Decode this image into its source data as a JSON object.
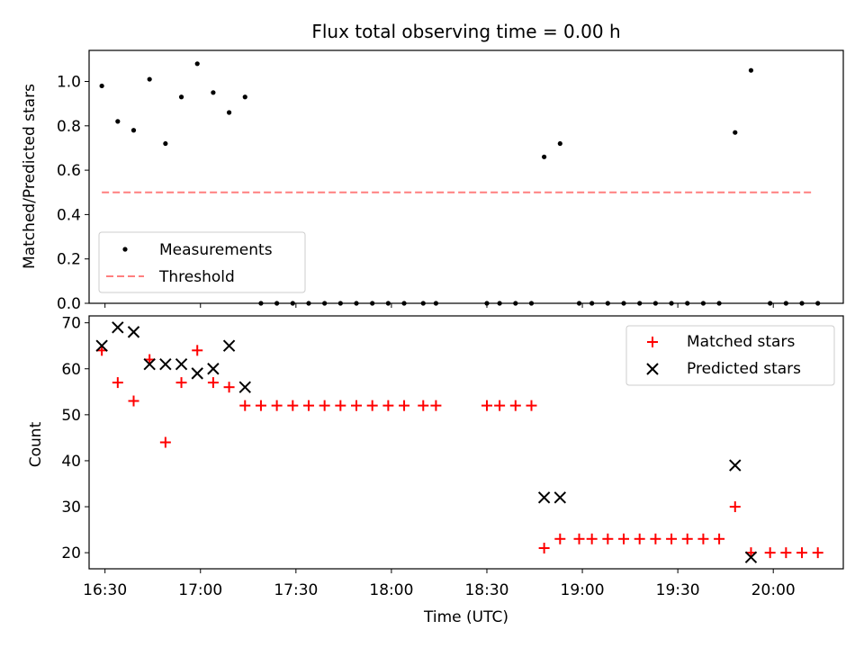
{
  "chart_data": [
    {
      "type": "scatter",
      "title": "Flux total observing time = 0.00 h",
      "xlabel": "",
      "ylabel": "Matched/Predicted stars",
      "x_axis": "time",
      "xlim": [
        "16:25",
        "20:22"
      ],
      "ylim": [
        0,
        1.14
      ],
      "yticks": [
        0.0,
        0.2,
        0.4,
        0.6,
        0.8,
        1.0
      ],
      "ytick_labels": [
        "0.0",
        "0.2",
        "0.4",
        "0.6",
        "0.8",
        "1.0"
      ],
      "legend_position": "lower-left",
      "series": [
        {
          "name": "Measurements",
          "kind": "point",
          "color": "#000000",
          "x": [
            "16:29",
            "16:34",
            "16:39",
            "16:44",
            "16:49",
            "16:54",
            "16:59",
            "17:04",
            "17:09",
            "17:14",
            "17:19",
            "17:24",
            "17:29",
            "17:34",
            "17:39",
            "17:44",
            "17:49",
            "17:54",
            "17:59",
            "18:04",
            "18:10",
            "18:14",
            "18:30",
            "18:34",
            "18:39",
            "18:44",
            "18:48",
            "18:53",
            "18:59",
            "19:03",
            "19:08",
            "19:13",
            "19:18",
            "19:23",
            "19:28",
            "19:33",
            "19:38",
            "19:43",
            "19:48",
            "19:53",
            "19:59",
            "20:04",
            "20:09",
            "20:14"
          ],
          "y": [
            0.98,
            0.82,
            0.78,
            1.01,
            0.72,
            0.93,
            1.08,
            0.95,
            0.86,
            0.93,
            0,
            0,
            0,
            0,
            0,
            0,
            0,
            0,
            0,
            0,
            0,
            0,
            0,
            0,
            0,
            0,
            0.66,
            0.72,
            0,
            0,
            0,
            0,
            0,
            0,
            0,
            0,
            0,
            0,
            0.77,
            1.05,
            0,
            0,
            0,
            0
          ]
        },
        {
          "name": "Threshold",
          "kind": "dashed-line",
          "color": "#ff7f7f",
          "x": [
            "16:29",
            "20:12"
          ],
          "y": [
            0.5,
            0.5
          ]
        }
      ]
    },
    {
      "type": "scatter",
      "title": "",
      "xlabel": "Time (UTC)",
      "ylabel": "Count",
      "x_axis": "time",
      "xlim": [
        "16:25",
        "20:22"
      ],
      "ylim": [
        16.5,
        71.5
      ],
      "xticks": [
        "16:30",
        "17:00",
        "17:30",
        "18:00",
        "18:30",
        "19:00",
        "19:30",
        "20:00"
      ],
      "yticks": [
        20,
        30,
        40,
        50,
        60,
        70
      ],
      "ytick_labels": [
        "20",
        "30",
        "40",
        "50",
        "60",
        "70"
      ],
      "legend_position": "upper-right",
      "series": [
        {
          "name": "Matched stars",
          "marker": "plus",
          "color": "#ff0000",
          "x": [
            "16:29",
            "16:34",
            "16:39",
            "16:44",
            "16:49",
            "16:54",
            "16:59",
            "17:04",
            "17:09",
            "17:14",
            "17:19",
            "17:24",
            "17:29",
            "17:34",
            "17:39",
            "17:44",
            "17:49",
            "17:54",
            "17:59",
            "18:04",
            "18:10",
            "18:14",
            "18:30",
            "18:34",
            "18:39",
            "18:44",
            "18:48",
            "18:53",
            "18:59",
            "19:03",
            "19:08",
            "19:13",
            "19:18",
            "19:23",
            "19:28",
            "19:33",
            "19:38",
            "19:43",
            "19:48",
            "19:53",
            "19:59",
            "20:04",
            "20:09",
            "20:14"
          ],
          "y": [
            64,
            57,
            53,
            62,
            44,
            57,
            64,
            57,
            56,
            52,
            52,
            52,
            52,
            52,
            52,
            52,
            52,
            52,
            52,
            52,
            52,
            52,
            52,
            52,
            52,
            52,
            21,
            23,
            23,
            23,
            23,
            23,
            23,
            23,
            23,
            23,
            23,
            23,
            30,
            20,
            20,
            20,
            20,
            20
          ]
        },
        {
          "name": "Predicted stars",
          "marker": "x",
          "color": "#000000",
          "x": [
            "16:29",
            "16:34",
            "16:39",
            "16:44",
            "16:49",
            "16:54",
            "16:59",
            "17:04",
            "17:09",
            "17:14",
            "18:48",
            "18:53",
            "19:48",
            "19:53"
          ],
          "y": [
            65,
            69,
            68,
            61,
            61,
            61,
            59,
            60,
            65,
            56,
            32,
            32,
            39,
            19
          ]
        }
      ]
    }
  ]
}
